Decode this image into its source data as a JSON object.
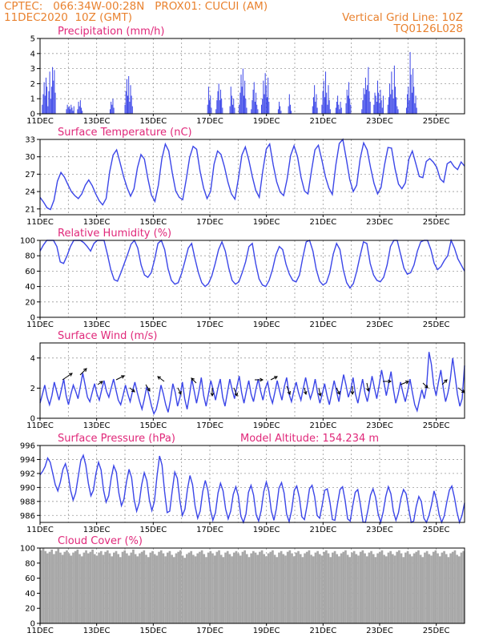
{
  "header": {
    "line1": "CPTEC:   066:34W-00:28N   PROX01: CUCUI (AM)",
    "line2": "11DEC2020  10Z (GMT)",
    "grid_note": "Vertical Grid Line: 10Z",
    "model_id": "TQ0126L028"
  },
  "colors": {
    "header": "#e9822f",
    "title": "#e0287a",
    "series": "#3b46e8",
    "cloud": "#a8a8a8"
  },
  "chart_data": [
    {
      "id": "precipitation",
      "type": "bar",
      "title": "Precipitation  (mm/h)",
      "ylim": [
        0,
        5
      ],
      "yticks": [
        0,
        1,
        2,
        3,
        4,
        5
      ],
      "grid": true,
      "xticks": [
        "11DEC",
        "13DEC",
        "15DEC",
        "17DEC",
        "19DEC",
        "21DEC",
        "23DEC",
        "25DEC"
      ],
      "x_start": "11DEC2020 10Z",
      "step_hours": 3,
      "values": [
        0,
        0,
        0.6,
        1.3,
        2.1,
        1.2,
        2.4,
        1.8,
        0.5,
        1.5,
        2.8,
        1.0,
        1.8,
        3.1,
        2.2,
        2.9,
        1.4,
        0,
        0,
        0,
        0,
        0,
        0,
        0,
        0,
        0,
        0,
        0,
        0.3,
        0.6,
        0.4,
        0.5,
        0.3,
        0.6,
        0.4,
        0.2,
        0.5,
        0,
        0,
        0,
        0.3,
        0.8,
        0.5,
        0.9,
        0.4,
        0.2,
        0,
        0,
        0,
        0,
        0,
        0,
        0,
        0,
        0,
        0,
        0,
        0,
        0,
        0,
        0,
        0,
        0,
        0,
        0,
        0,
        0,
        0,
        0,
        0,
        0,
        0,
        0,
        0,
        0,
        0.3,
        0.8,
        0.6,
        1.0,
        0.4,
        0,
        0,
        0,
        0,
        0,
        0,
        0,
        0,
        0,
        0,
        0,
        0.6,
        1.5,
        2.3,
        1.2,
        2.5,
        0.8,
        1.9,
        1.2,
        0.5,
        0,
        0,
        0,
        0,
        0,
        0,
        0,
        0,
        0,
        0,
        0,
        0,
        0,
        0,
        0,
        0,
        0,
        0,
        0,
        0,
        0,
        0,
        0,
        0,
        0,
        0,
        0,
        0,
        0,
        0,
        0,
        0,
        0,
        0,
        0,
        0,
        0,
        0,
        0,
        0,
        0,
        0,
        0,
        0,
        0,
        0,
        0,
        0,
        0,
        0,
        0,
        0,
        0,
        0,
        0,
        0,
        0,
        0,
        0,
        0,
        0,
        0,
        0,
        0,
        0,
        0,
        0,
        0,
        0,
        0,
        0,
        0,
        0,
        0,
        0,
        0,
        0,
        0,
        0,
        0,
        0.6,
        1.8,
        0.9,
        1.2,
        0.4,
        0,
        0,
        0,
        0,
        0.3,
        0.9,
        1.5,
        2.0,
        0.9,
        1.6,
        1.0,
        0.4,
        0,
        0,
        0,
        0,
        0,
        0,
        0,
        0.5,
        1.8,
        1.2,
        0.6,
        1.0,
        0.4,
        0,
        0,
        0,
        0,
        0.6,
        1.4,
        2.6,
        1.8,
        3.0,
        1.2,
        2.2,
        1.0,
        0.4,
        0,
        0,
        0,
        0,
        0.3,
        0.9,
        1.6,
        2.1,
        0.8,
        1.4,
        0.6,
        0.3,
        0,
        0,
        0,
        0.6,
        1.0,
        2.2,
        1.3,
        2.7,
        1.9,
        1.1,
        2.4,
        0.8,
        0,
        0,
        0,
        0,
        0,
        0,
        0,
        0,
        0,
        0.3,
        0.8,
        0.5,
        0.2,
        0,
        0,
        0,
        0,
        0,
        0,
        0,
        0.5,
        1.3,
        0.6,
        0.2,
        0,
        0,
        0,
        0,
        0,
        0,
        0,
        0,
        0,
        0,
        0,
        0,
        0,
        0,
        0,
        0,
        0,
        0,
        0,
        0,
        0,
        0,
        0.5,
        1.1,
        1.9,
        0.8,
        1.3,
        0.4,
        0,
        0,
        0,
        0,
        0.6,
        1.5,
        2.2,
        1.1,
        2.8,
        1.4,
        0.6,
        1.9,
        0.9,
        0.3,
        0,
        0,
        0,
        0,
        0,
        0.4,
        0.8,
        1.2,
        0.6,
        0.3,
        0.8,
        0.4,
        0,
        0,
        0,
        0,
        0.7,
        1.6,
        1.2,
        2.1,
        1.0,
        0.6,
        0,
        0,
        0,
        0,
        0,
        0,
        0,
        0,
        0,
        0,
        0,
        0.3,
        0.9,
        1.7,
        1.3,
        2.4,
        1.6,
        1.9,
        3.1,
        1.5,
        0.8,
        0,
        0,
        0,
        0.6,
        1.4,
        1.2,
        0.8,
        2.2,
        1.4,
        0.7,
        1.6,
        0.9,
        0.4,
        1.2,
        0,
        0,
        0,
        0,
        0.6,
        1.1,
        2.0,
        1.3,
        2.8,
        1.6,
        1.0,
        3.2,
        1.8,
        1.1,
        0.5,
        0.3,
        0,
        0,
        0,
        0,
        0,
        0,
        0,
        0,
        0.4,
        1.3,
        1.8,
        0.9,
        4.1,
        2.6,
        1.4,
        3.0,
        1.8,
        0.7,
        1.2,
        0.4,
        0,
        0,
        0,
        0,
        0,
        0,
        0,
        0,
        0,
        0,
        0,
        0,
        0,
        0,
        0,
        0,
        0,
        0,
        0,
        0,
        0,
        0,
        0,
        0,
        0,
        0,
        0,
        0,
        0,
        0,
        0,
        0,
        0,
        0,
        0,
        0,
        0,
        0,
        0,
        0,
        0,
        0,
        0,
        0,
        0,
        0,
        0,
        0,
        0,
        0,
        0
      ]
    },
    {
      "id": "temperature",
      "type": "line",
      "title": "Surface Temperature  (nC)",
      "ylim": [
        20,
        33
      ],
      "yticks": [
        21,
        24,
        27,
        30,
        33
      ],
      "grid": true,
      "xticks": [
        "11DEC",
        "13DEC",
        "15DEC",
        "17DEC",
        "19DEC",
        "21DEC",
        "23DEC",
        "25DEC"
      ],
      "x_start": "11DEC2020 10Z",
      "step_hours": 6,
      "values": [
        23.0,
        22.2,
        21.2,
        20.9,
        22.5,
        25.8,
        27.3,
        26.5,
        25.2,
        24.0,
        23.3,
        22.8,
        23.6,
        25.1,
        26.0,
        25.0,
        23.6,
        22.4,
        21.7,
        22.8,
        27.4,
        30.3,
        31.2,
        29.0,
        26.6,
        24.7,
        23.2,
        24.5,
        28.1,
        30.4,
        29.6,
        26.2,
        23.4,
        22.3,
        25.1,
        29.6,
        32.2,
        31.0,
        27.2,
        24.1,
        23.0,
        22.6,
        26.1,
        29.9,
        31.8,
        31.3,
        27.5,
        24.6,
        22.8,
        24.0,
        28.7,
        31.0,
        30.4,
        28.3,
        25.6,
        23.6,
        22.7,
        26.2,
        30.3,
        31.7,
        29.4,
        26.6,
        24.2,
        23.0,
        27.5,
        31.3,
        32.2,
        28.6,
        25.7,
        23.9,
        23.3,
        26.1,
        30.2,
        31.9,
        30.0,
        26.5,
        24.1,
        23.6,
        27.6,
        31.2,
        32.0,
        29.4,
        26.6,
        24.6,
        23.5,
        28.6,
        32.3,
        33.0,
        29.7,
        26.1,
        24.0,
        25.1,
        29.7,
        32.4,
        31.2,
        28.1,
        25.4,
        23.6,
        24.7,
        28.6,
        31.6,
        31.5,
        28.0,
        25.3,
        24.5,
        25.5,
        29.6,
        31.0,
        28.8,
        26.6,
        26.4,
        29.2,
        29.7,
        29.1,
        28.2,
        26.2,
        25.6,
        28.8,
        29.2,
        28.3,
        27.8,
        29.1,
        28.4
      ]
    },
    {
      "id": "humidity",
      "type": "line",
      "title": "Relative Humidity  (%)",
      "ylim": [
        0,
        100
      ],
      "yticks": [
        0,
        20,
        40,
        60,
        80,
        100
      ],
      "grid": true,
      "xticks": [
        "11DEC",
        "13DEC",
        "15DEC",
        "17DEC",
        "19DEC",
        "21DEC",
        "23DEC",
        "25DEC"
      ],
      "x_start": "11DEC2020 10Z",
      "step_hours": 6,
      "values": [
        86,
        94,
        100,
        100,
        100,
        92,
        72,
        70,
        80,
        92,
        100,
        100,
        100,
        97,
        92,
        86,
        96,
        100,
        100,
        100,
        82,
        62,
        49,
        47,
        58,
        70,
        82,
        95,
        100,
        90,
        68,
        55,
        52,
        58,
        75,
        96,
        100,
        88,
        63,
        48,
        43,
        45,
        57,
        73,
        90,
        96,
        76,
        58,
        45,
        40,
        44,
        54,
        70,
        88,
        98,
        86,
        64,
        48,
        43,
        46,
        58,
        72,
        92,
        96,
        70,
        50,
        42,
        40,
        48,
        62,
        81,
        92,
        88,
        69,
        56,
        48,
        46,
        55,
        78,
        98,
        100,
        86,
        62,
        47,
        42,
        45,
        58,
        82,
        96,
        88,
        62,
        45,
        38,
        44,
        60,
        80,
        98,
        96,
        70,
        55,
        48,
        46,
        52,
        68,
        92,
        100,
        100,
        82,
        64,
        56,
        58,
        68,
        86,
        98,
        100,
        100,
        88,
        70,
        62,
        66,
        74,
        80,
        100,
        90,
        76,
        68,
        60
      ]
    },
    {
      "id": "wind",
      "type": "line",
      "title": "Surface Wind  (m/s)",
      "ylim": [
        0,
        5
      ],
      "yticks": [
        0,
        2,
        4
      ],
      "grid": true,
      "xticks": [
        "11DEC",
        "13DEC",
        "15DEC",
        "17DEC",
        "19DEC",
        "21DEC",
        "23DEC",
        "25DEC"
      ],
      "x_start": "11DEC2020 10Z",
      "step_hours": 3,
      "values": [
        1.0,
        1.6,
        2.2,
        1.4,
        0.9,
        1.5,
        2.4,
        1.8,
        1.2,
        1.9,
        2.6,
        1.5,
        0.9,
        1.6,
        2.2,
        1.8,
        1.3,
        2.1,
        3.0,
        2.2,
        1.4,
        1.1,
        1.7,
        2.3,
        1.6,
        1.2,
        1.9,
        2.5,
        1.8,
        1.4,
        2.0,
        2.6,
        1.9,
        1.2,
        0.9,
        1.5,
        2.2,
        1.6,
        1.1,
        1.8,
        2.4,
        1.7,
        1.1,
        0.6,
        1.3,
        2.1,
        1.5,
        0.8,
        0.3,
        0.6,
        1.3,
        2.2,
        1.6,
        0.9,
        0.4,
        1.2,
        2.3,
        1.7,
        0.8,
        1.4,
        2.4,
        1.3,
        0.6,
        1.5,
        2.6,
        1.8,
        1.0,
        1.8,
        2.7,
        1.5,
        0.8,
        1.6,
        2.5,
        1.9,
        1.2,
        2.0,
        2.6,
        1.4,
        0.8,
        1.7,
        2.6,
        1.9,
        1.3,
        2.1,
        2.8,
        1.7,
        1.0,
        1.8,
        2.5,
        1.6,
        1.1,
        1.9,
        2.6,
        1.8,
        1.2,
        2.0,
        2.4,
        1.5,
        1.0,
        1.7,
        2.5,
        1.8,
        1.2,
        2.1,
        2.7,
        1.6,
        1.1,
        1.8,
        2.4,
        1.7,
        1.2,
        2.0,
        2.7,
        1.9,
        1.3,
        1.8,
        2.6,
        1.7,
        1.0,
        1.6,
        2.3,
        1.5,
        0.9,
        1.7,
        2.5,
        1.8,
        1.1,
        2.0,
        2.9,
        2.2,
        1.4,
        1.9,
        2.7,
        1.6,
        1.0,
        1.8,
        2.6,
        1.7,
        1.1,
        1.9,
        2.8,
        2.0,
        1.3,
        2.2,
        3.2,
        2.4,
        1.5,
        2.3,
        3.1,
        1.9,
        1.0,
        1.6,
        2.4,
        1.7,
        1.1,
        1.8,
        2.6,
        1.7,
        0.9,
        0.5,
        1.2,
        1.9,
        1.3,
        2.1,
        4.4,
        3.6,
        2.2,
        1.5,
        2.4,
        3.2,
        2.0,
        1.1,
        1.7,
        2.6,
        4.0,
        2.8,
        1.6,
        0.8,
        1.3,
        3.5
      ]
    },
    {
      "id": "pressure",
      "type": "line",
      "title": "Surface Pressure  (hPa)",
      "annotation": "Model Altitude:  154.234  m",
      "ylim": [
        985,
        996
      ],
      "yticks": [
        986,
        988,
        990,
        992,
        994,
        996
      ],
      "grid": true,
      "xticks": [
        "11DEC",
        "13DEC",
        "15DEC",
        "17DEC",
        "19DEC",
        "21DEC",
        "23DEC",
        "25DEC"
      ],
      "x_start": "11DEC2020 10Z",
      "step_hours": 3,
      "values": [
        991.8,
        992.3,
        993.0,
        994.2,
        993.6,
        992.0,
        990.4,
        989.5,
        990.8,
        992.6,
        993.4,
        992.0,
        989.6,
        988.2,
        989.2,
        991.5,
        993.8,
        994.6,
        993.2,
        990.6,
        988.8,
        989.6,
        992.0,
        993.6,
        992.5,
        989.6,
        987.9,
        988.8,
        991.4,
        993.1,
        992.2,
        989.2,
        987.4,
        988.3,
        990.8,
        992.6,
        991.4,
        988.3,
        986.6,
        987.8,
        990.4,
        992.1,
        991.0,
        988.2,
        986.7,
        988.0,
        991.6,
        994.5,
        993.2,
        989.4,
        986.4,
        986.6,
        989.5,
        992.2,
        991.3,
        988.1,
        986.0,
        986.9,
        989.8,
        991.7,
        990.4,
        987.3,
        985.6,
        986.6,
        989.4,
        991.0,
        989.6,
        986.8,
        985.3,
        986.4,
        989.2,
        990.6,
        989.5,
        986.9,
        985.5,
        986.6,
        989.0,
        990.1,
        988.8,
        985.9,
        985.0,
        986.2,
        989.3,
        990.3,
        988.9,
        986.1,
        985.2,
        986.7,
        989.4,
        990.8,
        989.5,
        986.6,
        985.3,
        987.0,
        989.9,
        990.7,
        989.2,
        986.2,
        985.1,
        986.8,
        989.6,
        990.2,
        988.6,
        985.8,
        985.4,
        987.3,
        989.8,
        990.3,
        988.7,
        986.0,
        985.6,
        987.5,
        989.6,
        989.8,
        988.0,
        985.4,
        985.3,
        987.6,
        989.7,
        990.1,
        988.2,
        985.5,
        985.2,
        987.4,
        989.3,
        989.7,
        987.6,
        985.1,
        985.0,
        986.8,
        988.9,
        989.8,
        988.6,
        986.2,
        985.0,
        986.5,
        988.7,
        990.1,
        989.1,
        986.6,
        985.3,
        986.4,
        988.5,
        989.7,
        989.1,
        987.0,
        985.0,
        985.2,
        987.3,
        988.7,
        988.0,
        985.6,
        985.0,
        986.0,
        987.5,
        989.5,
        988.2,
        986.1,
        985.0,
        985.9,
        987.9,
        989.6,
        990.2,
        988.6,
        986.5,
        985.0,
        986.0,
        987.8
      ]
    },
    {
      "id": "cloud_cover",
      "type": "bar",
      "title": "Cloud Cover  (%)",
      "ylim": [
        0,
        100
      ],
      "yticks": [
        0,
        20,
        40,
        60,
        80,
        100
      ],
      "grid": true,
      "xticks": [
        "11DEC",
        "13DEC",
        "15DEC",
        "17DEC",
        "19DEC",
        "21DEC",
        "23DEC",
        "25DEC"
      ],
      "x_start": "11DEC2020 10Z",
      "step_hours": 3,
      "values": [
        97,
        100,
        96,
        93,
        95,
        98,
        92,
        96,
        99,
        94,
        91,
        95,
        97,
        93,
        90,
        94,
        96,
        98,
        92,
        89,
        94,
        97,
        93,
        95,
        98,
        92,
        90,
        94,
        96,
        91,
        95,
        97,
        93,
        89,
        94,
        96,
        92,
        88,
        95,
        97,
        93,
        90,
        94,
        98,
        92,
        89,
        93,
        95,
        97,
        91,
        88,
        94,
        96,
        92,
        90,
        95,
        97,
        93,
        89,
        94,
        96,
        91,
        88,
        93,
        95,
        97,
        90,
        87,
        92,
        94,
        96,
        91,
        89,
        93,
        95,
        97,
        92,
        88,
        94,
        96,
        93,
        90,
        95,
        97,
        91,
        88,
        94,
        96,
        92,
        89,
        94,
        96,
        93,
        90,
        95,
        97,
        92,
        88,
        93,
        96,
        94,
        91,
        95,
        97,
        92,
        89,
        93,
        95,
        97,
        91,
        88,
        94,
        96,
        92,
        90,
        95,
        97,
        93,
        89,
        94,
        96,
        92,
        88,
        93,
        95,
        97,
        91,
        89,
        94,
        96,
        92,
        90,
        95,
        97,
        93,
        88,
        94,
        96,
        92,
        89,
        93,
        95,
        97,
        91,
        88,
        94,
        96,
        92,
        90,
        95,
        97,
        93,
        89,
        94,
        96,
        92,
        88,
        93,
        95,
        97,
        91,
        89,
        94,
        96,
        92,
        90,
        95,
        97,
        93,
        88,
        94,
        96,
        92,
        89,
        93,
        95,
        97,
        91,
        88,
        94,
        96,
        92,
        90,
        95,
        97,
        93,
        89,
        94,
        96,
        92,
        88,
        93,
        95,
        97,
        91,
        89,
        94,
        96
      ]
    }
  ]
}
